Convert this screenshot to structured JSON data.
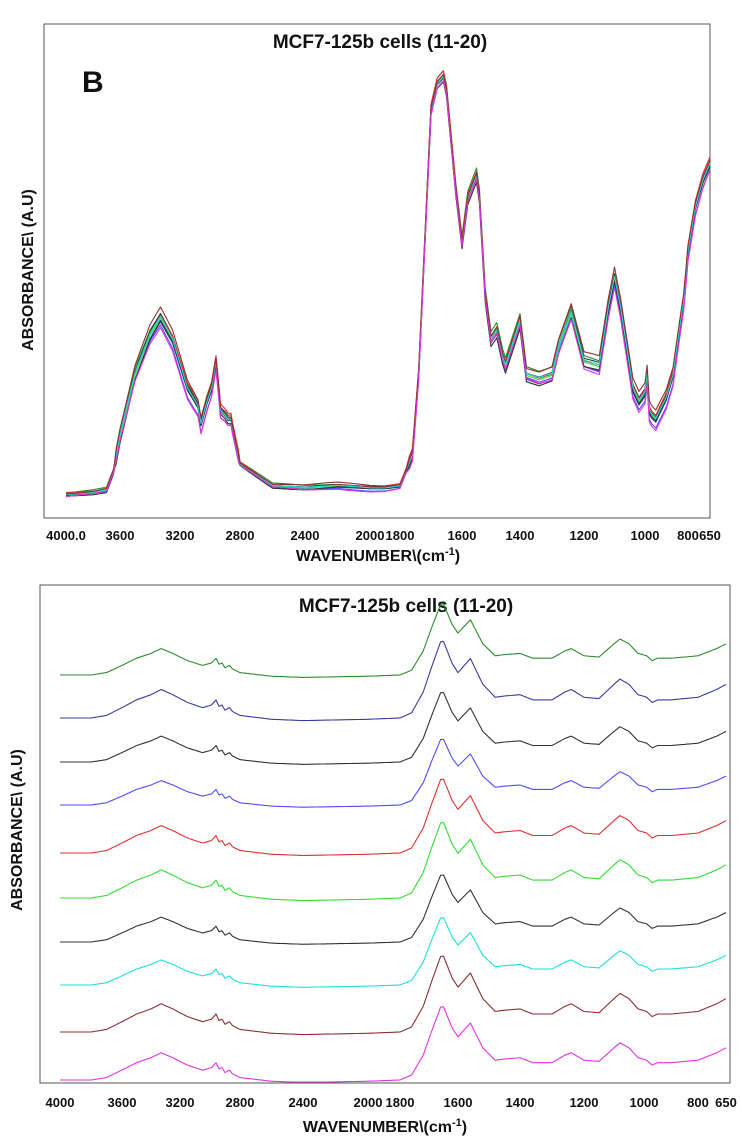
{
  "colors": {
    "green": "#2e8b2e",
    "navy": "#3a3aa0",
    "black": "#333333",
    "blue": "#4d4dff",
    "red": "#e03030",
    "lime": "#33dd33",
    "cyan": "#22dddd",
    "brown": "#8b3030",
    "magenta": "#e033e0"
  },
  "chart_data": [
    {
      "type": "line",
      "panel_label": "B",
      "title": "MCF7-125b  cells (11-20)",
      "xlabel": "WAVENUMBER\\(cm",
      "xlabel_sup": "-1",
      "xlabel_end": ")",
      "ylabel": "ABSORBANCE\\ (A.U)",
      "xlim": [
        4000,
        650
      ],
      "x_reversed": true,
      "ylim": [
        0,
        1
      ],
      "x_ticks": [
        4000,
        3600,
        3200,
        2800,
        2400,
        2000,
        1800,
        1600,
        1400,
        1200,
        1000,
        800,
        650
      ],
      "x_tick_labels": [
        "4000.0",
        "3600",
        "3200",
        "2800",
        "2400",
        "2000",
        "1800",
        "1600",
        "1400",
        "1200",
        "1000",
        "800",
        "650"
      ],
      "overlaid": true,
      "series_count": 10,
      "series_colors": [
        "green",
        "navy",
        "black",
        "blue",
        "red",
        "lime",
        "black",
        "cyan",
        "brown",
        "magenta"
      ],
      "base_spectrum": {
        "x": [
          4000,
          3800,
          3700,
          3650,
          3600,
          3500,
          3400,
          3330,
          3250,
          3150,
          3080,
          3060,
          3020,
          2990,
          2960,
          2940,
          2930,
          2900,
          2880,
          2860,
          2850,
          2800,
          2600,
          2400,
          2200,
          2000,
          1900,
          1800,
          1760,
          1740,
          1720,
          1700,
          1680,
          1655,
          1620,
          1600,
          1580,
          1545,
          1520,
          1500,
          1480,
          1460,
          1450,
          1430,
          1400,
          1380,
          1340,
          1300,
          1280,
          1240,
          1200,
          1150,
          1120,
          1100,
          1080,
          1060,
          1040,
          1020,
          1000,
          990,
          980,
          970,
          950,
          930,
          900,
          870,
          850,
          820,
          800,
          750,
          700,
          650
        ],
        "y": [
          0.03,
          0.035,
          0.04,
          0.08,
          0.16,
          0.3,
          0.39,
          0.43,
          0.38,
          0.27,
          0.23,
          0.19,
          0.24,
          0.27,
          0.33,
          0.26,
          0.22,
          0.21,
          0.2,
          0.2,
          0.18,
          0.1,
          0.05,
          0.045,
          0.05,
          0.045,
          0.045,
          0.05,
          0.12,
          0.3,
          0.6,
          0.9,
          0.96,
          0.98,
          0.72,
          0.6,
          0.7,
          0.76,
          0.48,
          0.38,
          0.4,
          0.34,
          0.32,
          0.36,
          0.42,
          0.3,
          0.29,
          0.3,
          0.36,
          0.44,
          0.33,
          0.32,
          0.45,
          0.52,
          0.45,
          0.36,
          0.27,
          0.24,
          0.26,
          0.3,
          0.22,
          0.21,
          0.2,
          0.22,
          0.25,
          0.3,
          0.37,
          0.47,
          0.58,
          0.68,
          0.74,
          0.78
        ]
      },
      "series_offsets": [
        0.02,
        -0.01,
        0.01,
        -0.02,
        0.015,
        0.0,
        -0.015,
        0.005,
        0.025,
        -0.025
      ]
    },
    {
      "type": "line",
      "title": "MCF7-125b  cells (11-20)",
      "xlabel": "WAVENUMBER\\(cm",
      "xlabel_sup": "-1",
      "xlabel_end": ")",
      "ylabel": "ABSORBANCE\\ (A.U)",
      "xlim": [
        4000,
        650
      ],
      "x_reversed": true,
      "x_ticks": [
        4000,
        3600,
        3200,
        2800,
        2400,
        2000,
        1800,
        1600,
        1400,
        1200,
        1000,
        800,
        650
      ],
      "x_tick_labels": [
        "4000",
        "3600",
        "3200",
        "2800",
        "2400",
        "2000",
        "1800",
        "1600",
        "1400",
        "1200",
        "1000",
        "800",
        "650"
      ],
      "stacked": true,
      "series_count": 10,
      "series_colors": [
        "green",
        "navy",
        "black",
        "blue",
        "red",
        "lime",
        "black",
        "cyan",
        "brown",
        "magenta"
      ],
      "base_spectrum": {
        "x": [
          4000,
          3800,
          3700,
          3600,
          3500,
          3400,
          3330,
          3250,
          3150,
          3050,
          2990,
          2960,
          2940,
          2920,
          2900,
          2870,
          2850,
          2800,
          2600,
          2400,
          2000,
          1800,
          1760,
          1720,
          1690,
          1655,
          1620,
          1600,
          1560,
          1520,
          1480,
          1450,
          1400,
          1360,
          1300,
          1260,
          1240,
          1200,
          1150,
          1100,
          1080,
          1050,
          1020,
          990,
          970,
          950,
          900,
          800,
          700,
          650
        ],
        "y": [
          0.0,
          0.0,
          0.02,
          0.08,
          0.14,
          0.18,
          0.22,
          0.18,
          0.12,
          0.08,
          0.1,
          0.14,
          0.09,
          0.1,
          0.06,
          0.08,
          0.05,
          0.02,
          -0.01,
          -0.02,
          -0.01,
          0.0,
          0.04,
          0.2,
          0.4,
          0.62,
          0.42,
          0.35,
          0.46,
          0.26,
          0.16,
          0.17,
          0.18,
          0.14,
          0.14,
          0.2,
          0.22,
          0.16,
          0.15,
          0.26,
          0.3,
          0.26,
          0.18,
          0.16,
          0.12,
          0.14,
          0.14,
          0.16,
          0.22,
          0.26
        ]
      },
      "spacing_norm": 0.1
    }
  ]
}
